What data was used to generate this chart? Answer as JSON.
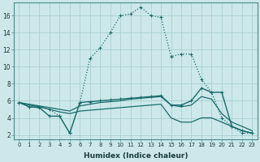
{
  "xlabel": "Humidex (Indice chaleur)",
  "bg_color": "#cce8ea",
  "grid_color": "#aacfd2",
  "line_color": "#1a6b6b",
  "ylim": [
    1.5,
    17.5
  ],
  "xlim": [
    -0.5,
    23.5
  ],
  "yticks": [
    2,
    4,
    6,
    8,
    10,
    12,
    14,
    16
  ],
  "xticks": [
    0,
    1,
    2,
    3,
    4,
    5,
    6,
    7,
    8,
    9,
    10,
    11,
    12,
    13,
    14,
    15,
    16,
    17,
    18,
    19,
    20,
    21,
    22,
    23
  ],
  "curve1_x": [
    0,
    1,
    2,
    3,
    4,
    5,
    6,
    7,
    8,
    9,
    10,
    11,
    12,
    13,
    14,
    15,
    16,
    17,
    18,
    19,
    20,
    21,
    22,
    23
  ],
  "curve1_y": [
    5.8,
    5.3,
    5.3,
    5.0,
    4.2,
    2.2,
    5.8,
    11.0,
    12.2,
    14.0,
    16.0,
    16.2,
    17.0,
    16.0,
    15.8,
    11.2,
    11.5,
    11.5,
    8.5,
    7.0,
    4.0,
    3.0,
    2.2,
    2.2
  ],
  "curve2_x": [
    0,
    1,
    2,
    3,
    4,
    5,
    6,
    7,
    8,
    9,
    10,
    11,
    12,
    13,
    14,
    15,
    16,
    17,
    18,
    19,
    20,
    21,
    22,
    23
  ],
  "curve2_y": [
    5.8,
    5.3,
    5.2,
    4.2,
    4.2,
    2.2,
    5.8,
    5.9,
    6.0,
    6.1,
    6.2,
    6.3,
    6.4,
    6.5,
    6.6,
    5.5,
    5.5,
    6.0,
    7.5,
    7.0,
    7.0,
    3.0,
    2.5,
    2.2
  ],
  "curve3_x": [
    0,
    1,
    2,
    3,
    4,
    5,
    6,
    7,
    8,
    9,
    10,
    11,
    12,
    13,
    14,
    15,
    16,
    17,
    18,
    19,
    20,
    21,
    22,
    23
  ],
  "curve3_y": [
    5.8,
    5.6,
    5.4,
    5.2,
    5.0,
    4.8,
    5.4,
    5.6,
    5.8,
    5.9,
    6.0,
    6.2,
    6.3,
    6.4,
    6.5,
    5.5,
    5.3,
    5.5,
    6.5,
    6.2,
    4.5,
    3.5,
    3.0,
    2.5
  ],
  "curve4_x": [
    0,
    1,
    2,
    3,
    4,
    5,
    6,
    7,
    8,
    9,
    10,
    11,
    12,
    13,
    14,
    15,
    16,
    17,
    18,
    19,
    20,
    21,
    22,
    23
  ],
  "curve4_y": [
    5.8,
    5.5,
    5.3,
    5.0,
    4.7,
    4.5,
    4.8,
    4.9,
    5.0,
    5.1,
    5.2,
    5.3,
    5.4,
    5.5,
    5.6,
    4.0,
    3.5,
    3.5,
    4.0,
    4.0,
    3.5,
    3.0,
    2.5,
    2.2
  ]
}
